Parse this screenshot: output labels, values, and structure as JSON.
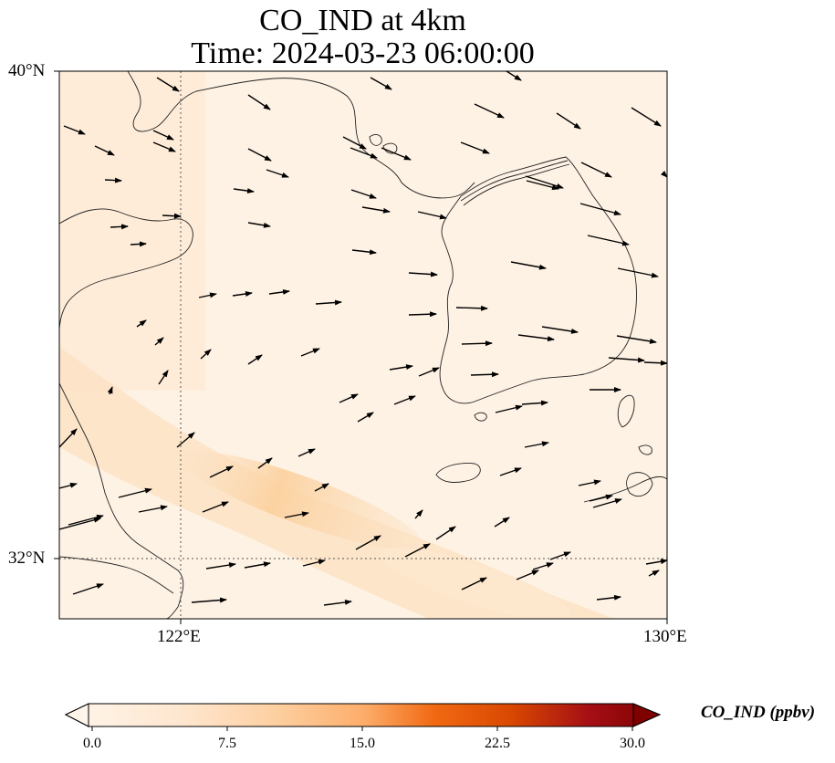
{
  "title": {
    "line1": "CO_IND at 4km",
    "line2": "Time: 2024-03-23 06:00:00"
  },
  "axes": {
    "lat_ticks": [
      "40°N",
      "32°N"
    ],
    "lon_ticks": [
      "122°E",
      "130°E"
    ],
    "gridlines": "dotted at 122°E and 32°N"
  },
  "colorbar": {
    "label": "CO_IND (ppbv)",
    "ticks": [
      "0.0",
      "7.5",
      "15.0",
      "22.5",
      "30.0"
    ],
    "colormap": "Oranges",
    "extend": "both",
    "colors": [
      "#fff5eb",
      "#fdd0a2",
      "#fd8d3c",
      "#d94801",
      "#a50f15",
      "#7f0000"
    ]
  },
  "chart_data": {
    "type": "heatmap",
    "title": "CO_IND at 4km",
    "subtitle": "Time: 2024-03-23 06:00:00",
    "x_range": [
      120.0,
      130.0
    ],
    "y_range": [
      31.0,
      40.0
    ],
    "value_range": [
      0.0,
      30.0
    ],
    "field_description_values": {
      "background_ppbv": 1.5,
      "plume_max_ppbv": 6.5
    },
    "wind_vectors": "eastward to east-south-eastward, stronger in north"
  }
}
